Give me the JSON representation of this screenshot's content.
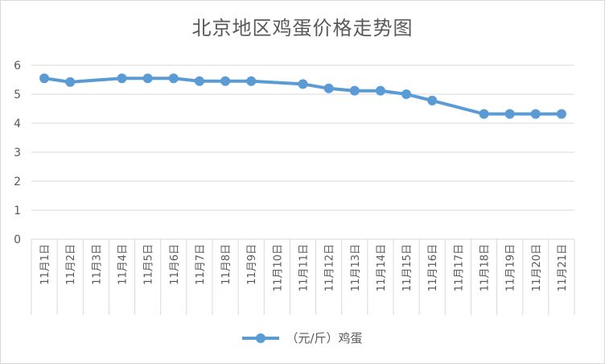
{
  "chart_data": {
    "type": "line",
    "title": "北京地区鸡蛋价格走势图",
    "categories": [
      "11月1日",
      "11月2日",
      "11月3日",
      "11月4日",
      "11月5日",
      "11月6日",
      "11月7日",
      "11月8日",
      "11月9日",
      "11月10日",
      "11月11日",
      "11月12日",
      "11月13日",
      "11月14日",
      "11月15日",
      "11月16日",
      "11月17日",
      "11月18日",
      "11月19日",
      "11月20日",
      "11月21日"
    ],
    "series": [
      {
        "name": "（元/斤）鸡蛋",
        "values": [
          5.55,
          5.42,
          null,
          5.55,
          5.55,
          5.55,
          5.45,
          5.45,
          5.45,
          null,
          5.35,
          5.2,
          5.12,
          5.12,
          5.0,
          4.78,
          null,
          4.32,
          4.32,
          4.32,
          4.32
        ]
      }
    ],
    "ylim": [
      0,
      6
    ],
    "yticks": [
      0,
      1,
      2,
      3,
      4,
      5,
      6
    ],
    "grid": true,
    "legend": "bottom",
    "colors": {
      "line": "#5b9bd5",
      "grid": "#d9d9d9",
      "text": "#595959"
    }
  }
}
